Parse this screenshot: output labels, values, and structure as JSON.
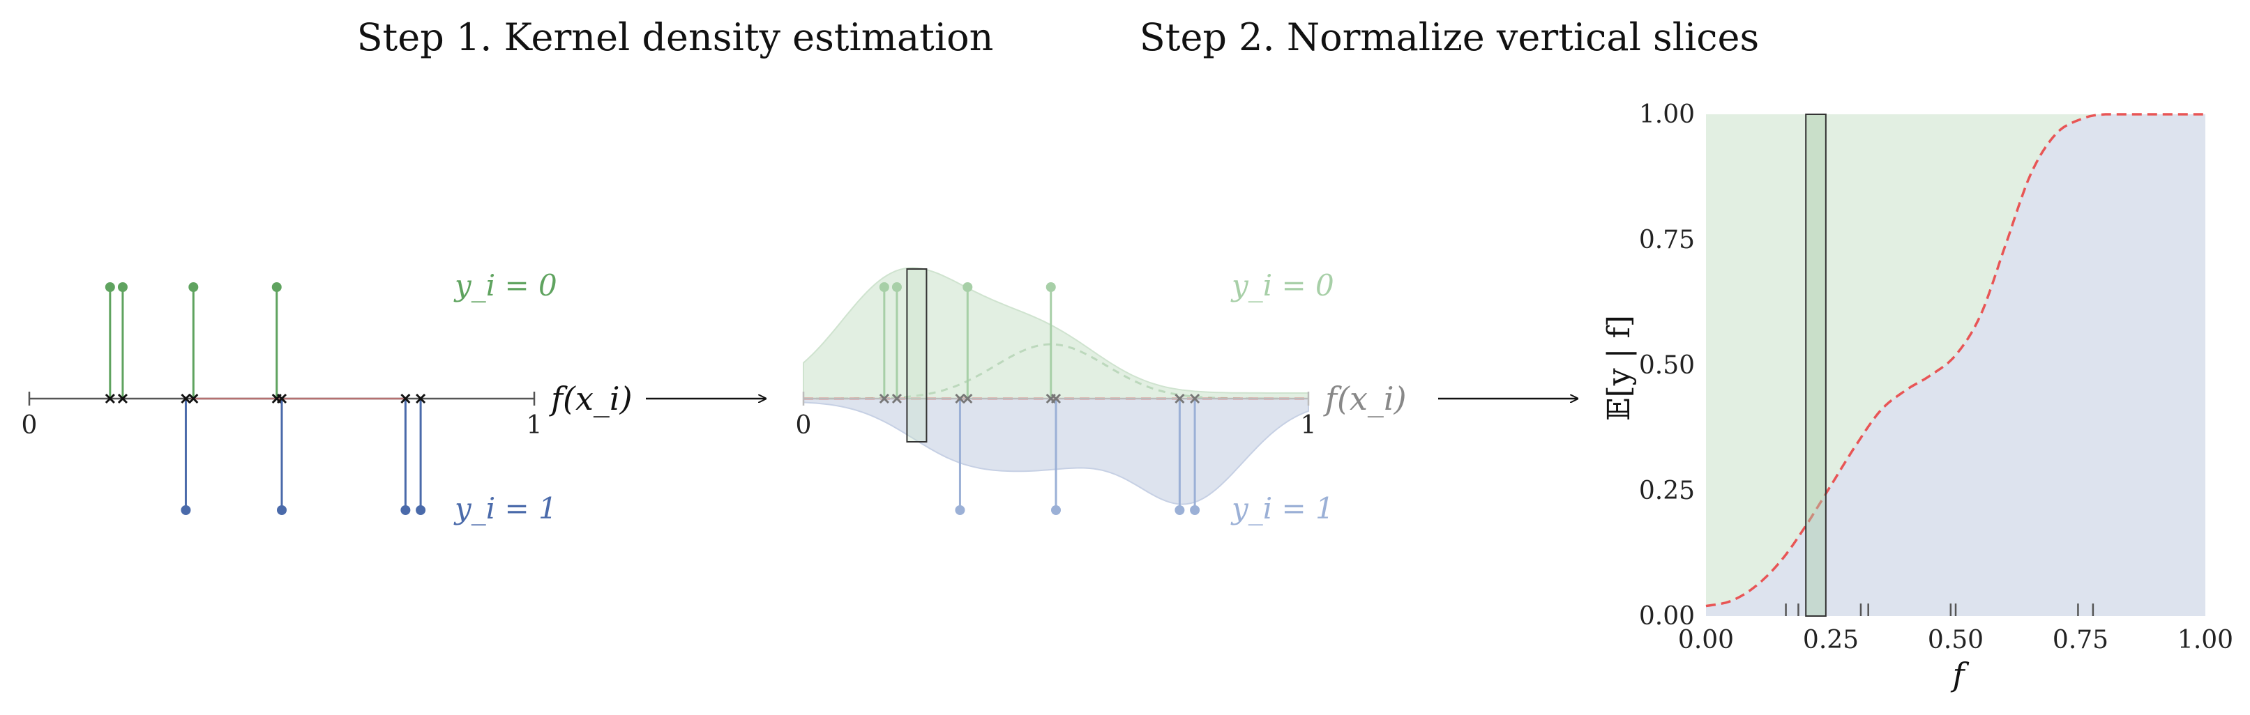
{
  "titles": {
    "step1": "Step 1. Kernel density estimation",
    "step2": "Step 2. Normalize vertical slices"
  },
  "panel1": {
    "axis_label": "f(x_i)",
    "axis_start": "0",
    "axis_end": "1",
    "label_y0": "y_i = 0",
    "label_y1": "y_i = 1"
  },
  "panel2": {
    "axis_label": "f(x_i)",
    "axis_start": "0",
    "axis_end": "1",
    "label_y0": "y_i = 0",
    "label_y1": "y_i = 1"
  },
  "points_y0": [
    0.16,
    0.185,
    0.325,
    0.49
  ],
  "points_y1": [
    0.31,
    0.5,
    0.745,
    0.775
  ],
  "colors": {
    "green": "#5fa35f",
    "blue": "#4a6aaa",
    "red": "#e85555",
    "green_fill": "#e2efe2",
    "blue_fill": "#dde3ee"
  },
  "chart_data": {
    "type": "area",
    "xlabel": "f",
    "ylabel": "𝔼[y | f]",
    "xlim": [
      0,
      1
    ],
    "ylim": [
      0,
      1
    ],
    "x_ticks": [
      "0.00",
      "0.25",
      "0.50",
      "0.75",
      "1.00"
    ],
    "y_ticks": [
      "0.00",
      "0.25",
      "0.50",
      "0.75",
      "1.00"
    ],
    "curve": {
      "x": [
        0.0,
        0.05,
        0.1,
        0.15,
        0.2,
        0.25,
        0.3,
        0.35,
        0.4,
        0.45,
        0.5,
        0.55,
        0.6,
        0.65,
        0.7,
        0.75,
        0.8,
        0.9,
        1.0
      ],
      "y": [
        0.02,
        0.03,
        0.06,
        0.11,
        0.18,
        0.26,
        0.34,
        0.41,
        0.45,
        0.48,
        0.52,
        0.6,
        0.74,
        0.88,
        0.96,
        0.99,
        1.0,
        1.0,
        1.0
      ]
    },
    "slice": [
      0.2,
      0.24
    ],
    "rug": [
      0.16,
      0.185,
      0.31,
      0.325,
      0.49,
      0.5,
      0.745,
      0.775
    ]
  }
}
